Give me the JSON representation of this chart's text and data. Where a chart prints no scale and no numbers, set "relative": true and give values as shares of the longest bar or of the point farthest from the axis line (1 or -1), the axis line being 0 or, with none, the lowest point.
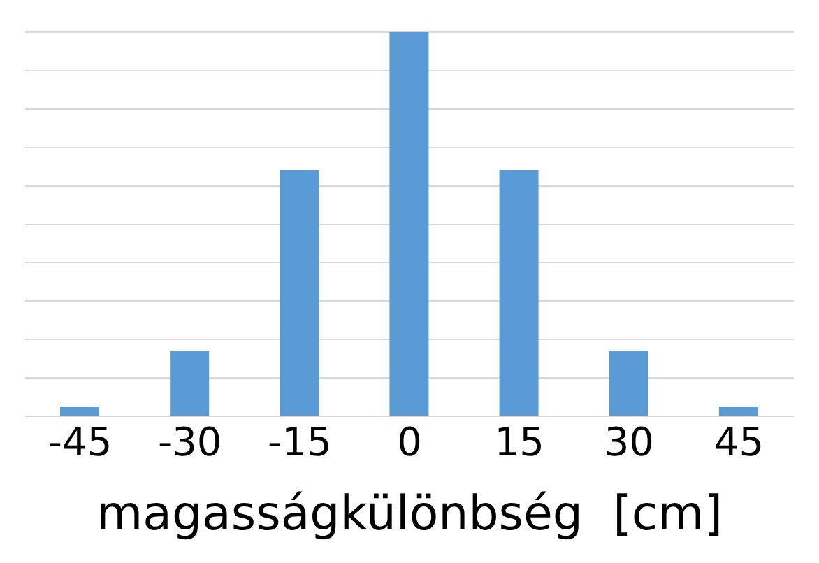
{
  "chart_data": {
    "type": "bar",
    "relative": true,
    "categories": [
      "-45",
      "-30",
      "-15",
      "0",
      "15",
      "30",
      "45"
    ],
    "values": [
      0.025,
      0.17,
      0.64,
      1,
      0.64,
      0.17,
      0.025
    ],
    "color": "#5b9bd5",
    "xlabel": "magasságkülönbség  [cm]",
    "grid": "y"
  }
}
